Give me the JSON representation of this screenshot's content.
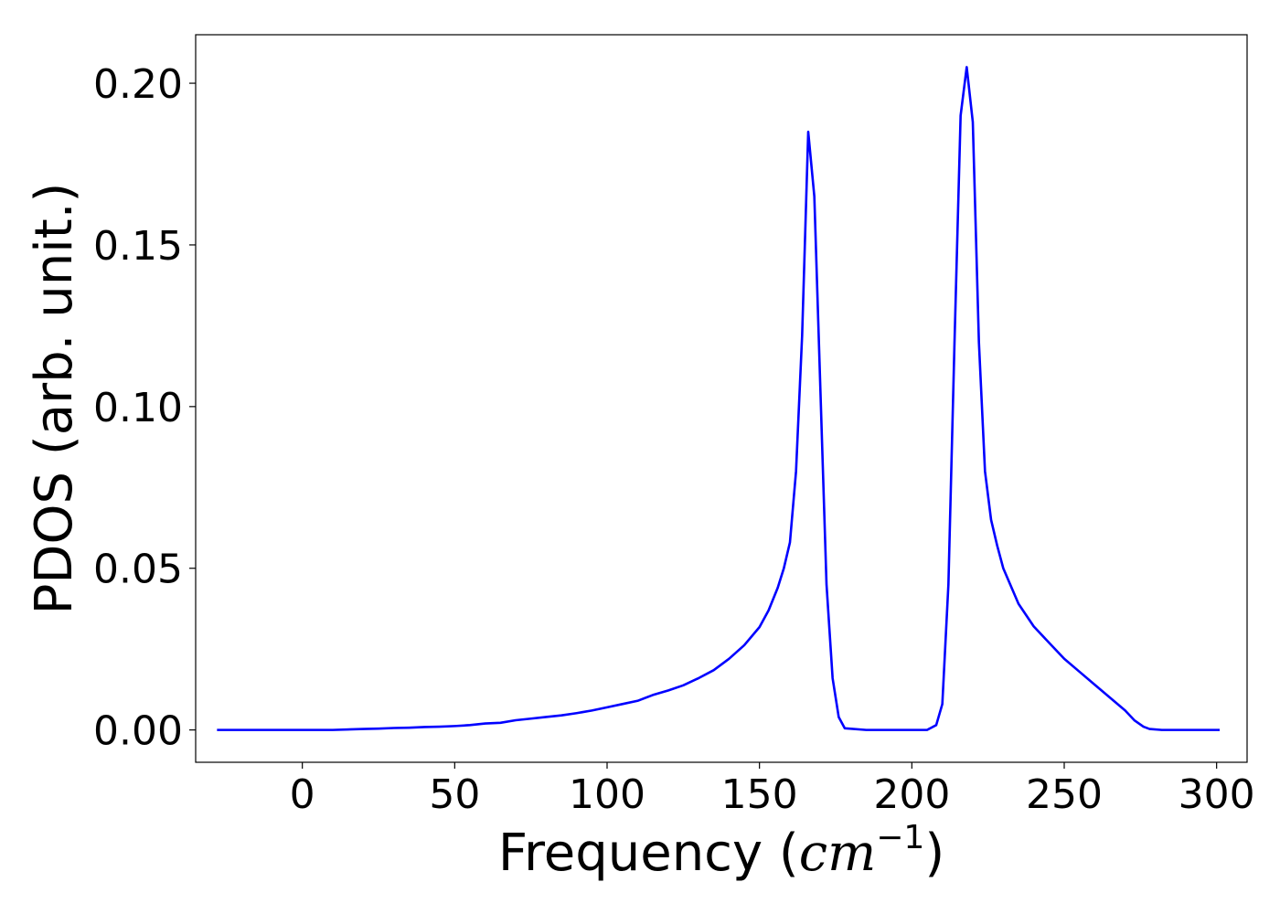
{
  "chart_data": {
    "type": "line",
    "title": "",
    "xlabel": "Frequency (cm^-1)",
    "xlabel_parts": {
      "prefix": "Frequency (",
      "unit": "cm",
      "superscript": "−1",
      "suffix": ")"
    },
    "ylabel": "PDOS (arb. unit.)",
    "xlim": [
      -35,
      310
    ],
    "ylim": [
      -0.01,
      0.215
    ],
    "grid": false,
    "legend": "none",
    "x_ticks": [
      {
        "value": 0,
        "label": "0"
      },
      {
        "value": 50,
        "label": "50"
      },
      {
        "value": 100,
        "label": "100"
      },
      {
        "value": 150,
        "label": "150"
      },
      {
        "value": 200,
        "label": "200"
      },
      {
        "value": 250,
        "label": "250"
      },
      {
        "value": 300,
        "label": "300"
      }
    ],
    "y_ticks": [
      {
        "value": 0.0,
        "label": "0.00"
      },
      {
        "value": 0.05,
        "label": "0.05"
      },
      {
        "value": 0.1,
        "label": "0.10"
      },
      {
        "value": 0.15,
        "label": "0.15"
      },
      {
        "value": 0.2,
        "label": "0.20"
      }
    ],
    "series": [
      {
        "color": "#0000ff",
        "x": [
          -28,
          0,
          10,
          20,
          25,
          30,
          35,
          40,
          45,
          50,
          55,
          60,
          65,
          70,
          75,
          80,
          85,
          90,
          95,
          100,
          105,
          110,
          115,
          120,
          125,
          130,
          135,
          140,
          145,
          150,
          153,
          156,
          158,
          160,
          162,
          164,
          166,
          168,
          170,
          172,
          174,
          176,
          178,
          185,
          195,
          205,
          208,
          210,
          212,
          214,
          216,
          218,
          220,
          222,
          224,
          226,
          228,
          230,
          235,
          240,
          245,
          250,
          255,
          260,
          265,
          270,
          273,
          276,
          278,
          282,
          290,
          301
        ],
        "y": [
          0.0,
          0.0,
          0.0,
          0.0003,
          0.0004,
          0.0006,
          0.0007,
          0.0009,
          0.001,
          0.0012,
          0.0015,
          0.002,
          0.0022,
          0.003,
          0.0035,
          0.004,
          0.0045,
          0.0052,
          0.006,
          0.007,
          0.008,
          0.009,
          0.0108,
          0.0122,
          0.0138,
          0.016,
          0.0185,
          0.022,
          0.0262,
          0.0318,
          0.037,
          0.044,
          0.05,
          0.058,
          0.08,
          0.122,
          0.185,
          0.165,
          0.105,
          0.045,
          0.016,
          0.004,
          0.0005,
          0.0,
          0.0,
          0.0,
          0.0015,
          0.008,
          0.045,
          0.12,
          0.19,
          0.205,
          0.188,
          0.12,
          0.08,
          0.065,
          0.057,
          0.05,
          0.039,
          0.032,
          0.027,
          0.022,
          0.018,
          0.014,
          0.01,
          0.006,
          0.003,
          0.001,
          0.0003,
          0.0,
          0.0,
          0.0
        ]
      }
    ]
  }
}
